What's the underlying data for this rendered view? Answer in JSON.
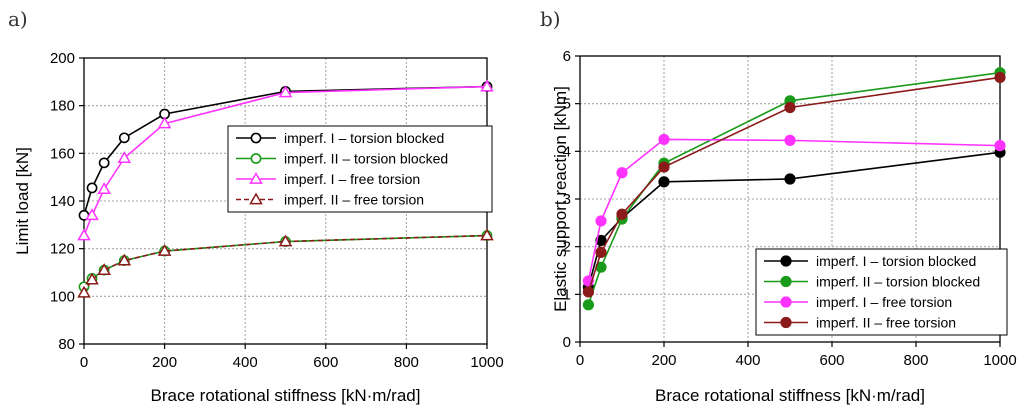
{
  "chart_data": [
    {
      "type": "line",
      "panel_label": "a)",
      "xlabel": "Brace rotational stiffness [kN·m/rad]",
      "ylabel": "Limit load [kN]",
      "xlim": [
        0,
        1000
      ],
      "ylim": [
        80,
        200
      ],
      "xticks": [
        0,
        200,
        400,
        600,
        800,
        1000
      ],
      "yticks": [
        80,
        100,
        120,
        140,
        160,
        180,
        200
      ],
      "grid": true,
      "legend_position": "center-right",
      "series": [
        {
          "name": "imperf. I – torsion blocked",
          "color": "#000000",
          "marker": "circle-open",
          "dashed": false,
          "x": [
            0,
            20,
            50,
            100,
            200,
            500,
            1000
          ],
          "y": [
            134,
            145.5,
            156,
            166.5,
            176.5,
            186,
            188
          ]
        },
        {
          "name": "imperf. II – torsion blocked",
          "color": "#1a9a1a",
          "marker": "circle-open",
          "dashed": false,
          "x": [
            0,
            20,
            50,
            100,
            200,
            500,
            1000
          ],
          "y": [
            104,
            107.5,
            111,
            115,
            119,
            123,
            125.5
          ]
        },
        {
          "name": "imperf. I – free torsion",
          "color": "#ff33ff",
          "marker": "triangle-open",
          "dashed": false,
          "x": [
            0,
            20,
            50,
            100,
            200,
            500,
            1000
          ],
          "y": [
            125.5,
            134,
            145,
            158,
            172.5,
            185.5,
            188
          ]
        },
        {
          "name": "imperf. II – free torsion",
          "color": "#8b1a1a",
          "marker": "triangle-open",
          "dashed": true,
          "x": [
            0,
            20,
            50,
            100,
            200,
            500,
            1000
          ],
          "y": [
            101.5,
            107,
            111,
            115,
            119,
            123,
            125.5
          ]
        }
      ]
    },
    {
      "type": "line",
      "panel_label": "b)",
      "xlabel": "Brace rotational stiffness [kN·m/rad]",
      "ylabel": "Elastic support reaction [kNm]",
      "xlim": [
        0,
        1000
      ],
      "ylim": [
        0,
        6
      ],
      "xticks": [
        0,
        200,
        400,
        600,
        800,
        1000
      ],
      "yticks": [
        0,
        1,
        2,
        3,
        4,
        5,
        6
      ],
      "grid": true,
      "legend_position": "bottom-right",
      "series": [
        {
          "name": "imperf. I  – torsion blocked",
          "color": "#000000",
          "marker": "circle-filled",
          "dashed": false,
          "x": [
            20,
            50,
            100,
            200,
            500,
            1000
          ],
          "y": [
            1.15,
            2.13,
            2.6,
            3.36,
            3.42,
            3.98
          ]
        },
        {
          "name": "imperf. II – torsion blocked",
          "color": "#1a9a1a",
          "marker": "circle-filled",
          "dashed": false,
          "x": [
            20,
            50,
            100,
            200,
            500,
            1000
          ],
          "y": [
            0.78,
            1.57,
            2.58,
            3.75,
            5.06,
            5.65
          ]
        },
        {
          "name": "imperf. I  – free torsion",
          "color": "#ff33ff",
          "marker": "circle-filled",
          "dashed": false,
          "x": [
            20,
            50,
            100,
            200,
            500,
            1000
          ],
          "y": [
            1.28,
            2.54,
            3.55,
            4.25,
            4.23,
            4.12
          ]
        },
        {
          "name": "imperf. II – free torsion",
          "color": "#8b1a1a",
          "marker": "circle-filled",
          "dashed": false,
          "x": [
            20,
            50,
            100,
            200,
            500,
            1000
          ],
          "y": [
            1.05,
            1.88,
            2.68,
            3.67,
            4.92,
            5.55
          ]
        }
      ]
    }
  ]
}
